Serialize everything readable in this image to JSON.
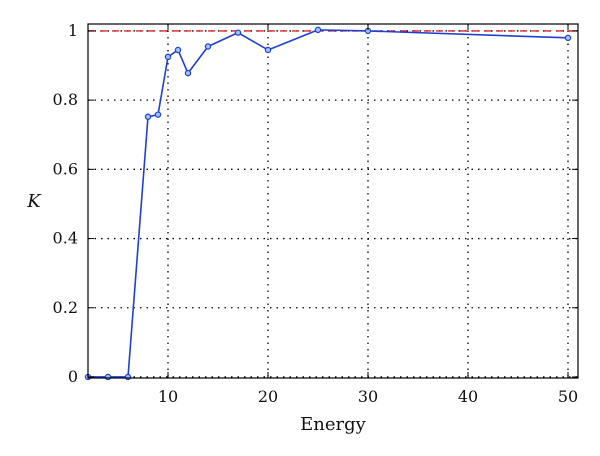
{
  "chart_data": {
    "type": "line",
    "xlabel": "Energy",
    "ylabel": "K",
    "xlim": [
      2,
      51
    ],
    "ylim": [
      -0.003,
      1.02
    ],
    "xticks": [
      10,
      20,
      30,
      40,
      50
    ],
    "yticks": [
      0,
      0.2,
      0.4,
      0.6,
      0.8,
      1
    ],
    "xtick_labels": [
      "10",
      "20",
      "30",
      "40",
      "50"
    ],
    "ytick_labels": [
      "0",
      "0.2",
      "0.4",
      "0.6",
      "0.8",
      "1"
    ],
    "grid": true,
    "legend": "none",
    "series": [
      {
        "color": "#1f3fd6",
        "marker": "circle",
        "x": [
          2,
          4,
          6,
          8,
          9,
          10,
          11,
          12,
          14,
          17,
          20,
          25,
          30,
          50
        ],
        "y": [
          0.0,
          0.0,
          0.0,
          0.752,
          0.758,
          0.925,
          0.945,
          0.878,
          0.955,
          0.995,
          0.945,
          1.003,
          1.0,
          0.98
        ]
      }
    ],
    "reference_line": {
      "y": 1,
      "color": "#d62728",
      "style": "dashed"
    }
  }
}
